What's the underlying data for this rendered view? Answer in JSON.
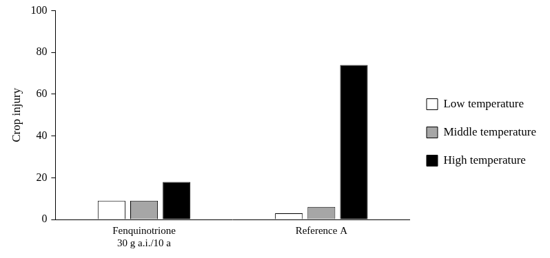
{
  "chart_data": {
    "type": "bar",
    "y_label": "Crop injury",
    "categories": [
      [
        "Fenquinotrione",
        "30 g a.i./10 a"
      ],
      "Reference A"
    ],
    "series": [
      {
        "name": "Low temperature",
        "color": "#ffffff",
        "values": [
          9,
          3
        ]
      },
      {
        "name": "Middle temperature",
        "color": "#a6a6a6",
        "values": [
          9,
          6
        ]
      },
      {
        "name": "High temperature",
        "color": "#000000",
        "values": [
          18,
          74
        ]
      }
    ],
    "ylim": [
      0,
      100
    ],
    "yticks": [
      0,
      20,
      40,
      60,
      80,
      100
    ],
    "grid": false,
    "legend": "right"
  }
}
